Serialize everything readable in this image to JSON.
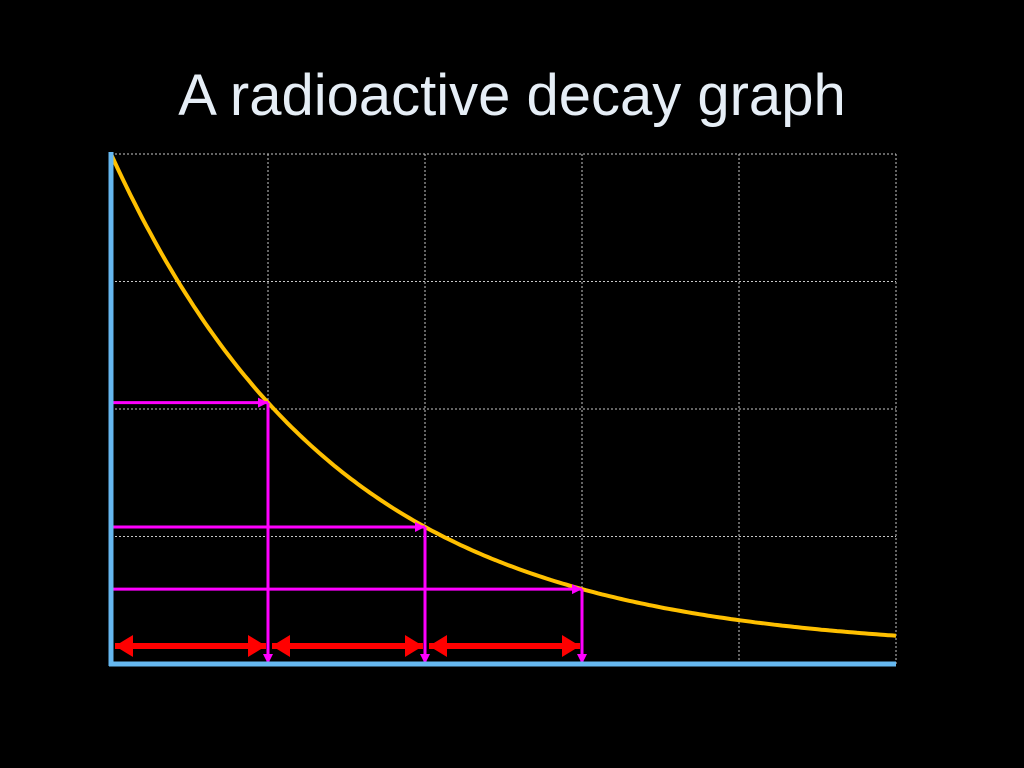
{
  "slide": {
    "title": "A radioactive decay graph"
  },
  "chart_data": {
    "type": "line",
    "title": "A radioactive decay graph",
    "xlabel": "",
    "ylabel": "",
    "xlim": [
      0,
      5
    ],
    "ylim": [
      0,
      4
    ],
    "grid": true,
    "series": [
      {
        "curve": "exponential-decay",
        "start_value": 4,
        "half_life": 1,
        "asymptote": 0.1
      }
    ],
    "half_life_markers": [
      {
        "x": 1,
        "y": 2
      },
      {
        "x": 2,
        "y": 1
      },
      {
        "x": 3,
        "y": 0.5
      }
    ],
    "half_life_intervals": [
      {
        "from": 0,
        "to": 1
      },
      {
        "from": 1,
        "to": 2
      },
      {
        "from": 2,
        "to": 3
      }
    ],
    "colors": {
      "background": "#000000",
      "curve": "#ffc000",
      "axes": "#66b8f0",
      "grid": "#c8c8c8",
      "markers": "#ff00ff",
      "intervals": "#ff0000",
      "title": "#e6eef6"
    }
  }
}
